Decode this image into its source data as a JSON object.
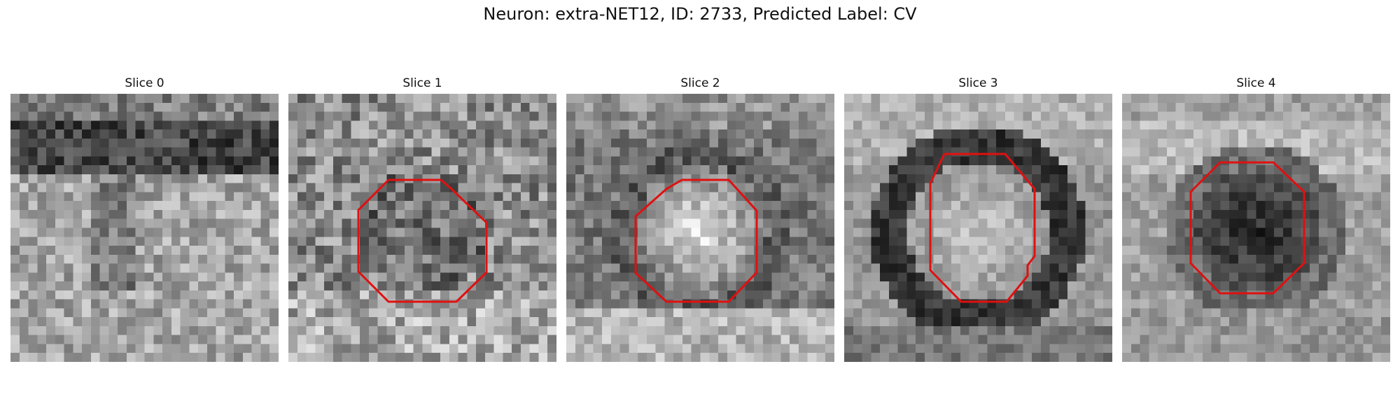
{
  "figure": {
    "title": "Neuron: extra-NET12, ID: 2733, Predicted Label: CV"
  },
  "panels": [
    {
      "title": "Slice 0",
      "pattern": "band",
      "has_contour": false
    },
    {
      "title": "Slice 1",
      "pattern": "noisy-ring",
      "has_contour": true
    },
    {
      "title": "Slice 2",
      "pattern": "bright-center",
      "has_contour": true
    },
    {
      "title": "Slice 3",
      "pattern": "dark-ring",
      "has_contour": true
    },
    {
      "title": "Slice 4",
      "pattern": "dark-center",
      "has_contour": true
    }
  ],
  "colors": {
    "contour": "#e01010",
    "colormap": "grayscale"
  }
}
